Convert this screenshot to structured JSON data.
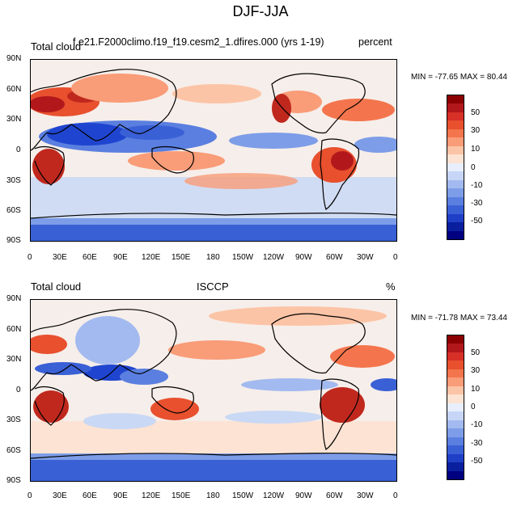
{
  "figure_title": "DJF-JJA",
  "panels": [
    {
      "left_label": "Total cloud",
      "center_label": "f.e21.F2000climo.f19_f19.cesm2_1.dfires.000 (yrs 1-19)",
      "right_label": "percent",
      "min_max": "MIN = -77.65 MAX =  80.44"
    },
    {
      "left_label": "Total cloud",
      "center_label": "ISCCP",
      "right_label": "%",
      "min_max": "MIN = -71.78 MAX =  73.44"
    }
  ],
  "lat_ticks": [
    "90N",
    "60N",
    "30N",
    "0",
    "30S",
    "60S",
    "90S"
  ],
  "lon_ticks": [
    "0",
    "30E",
    "60E",
    "90E",
    "120E",
    "150E",
    "180",
    "150W",
    "120W",
    "90W",
    "60W",
    "30W",
    "0"
  ],
  "colorbar": {
    "labels": [
      "50",
      "30",
      "10",
      "0",
      "-10",
      "-30",
      "-50"
    ],
    "colors": [
      "#8b0000",
      "#b2181b",
      "#d73027",
      "#e8502e",
      "#f4754d",
      "#f99c78",
      "#fcc4a6",
      "#fde3d3",
      "#e8eefc",
      "#c7d6f7",
      "#a3baf0",
      "#7d9de8",
      "#5a7fe0",
      "#3a60d6",
      "#1f3fc7",
      "#0a1f9e",
      "#000080"
    ]
  },
  "colors": {
    "positive_strong": "#c0281e",
    "positive_mid": "#f08060",
    "positive_light": "#fcd0bc",
    "negative_light": "#c9d8f5",
    "negative_mid": "#6f90e6",
    "negative_strong": "#1f45d0",
    "neutral": "#f7f3f1"
  }
}
